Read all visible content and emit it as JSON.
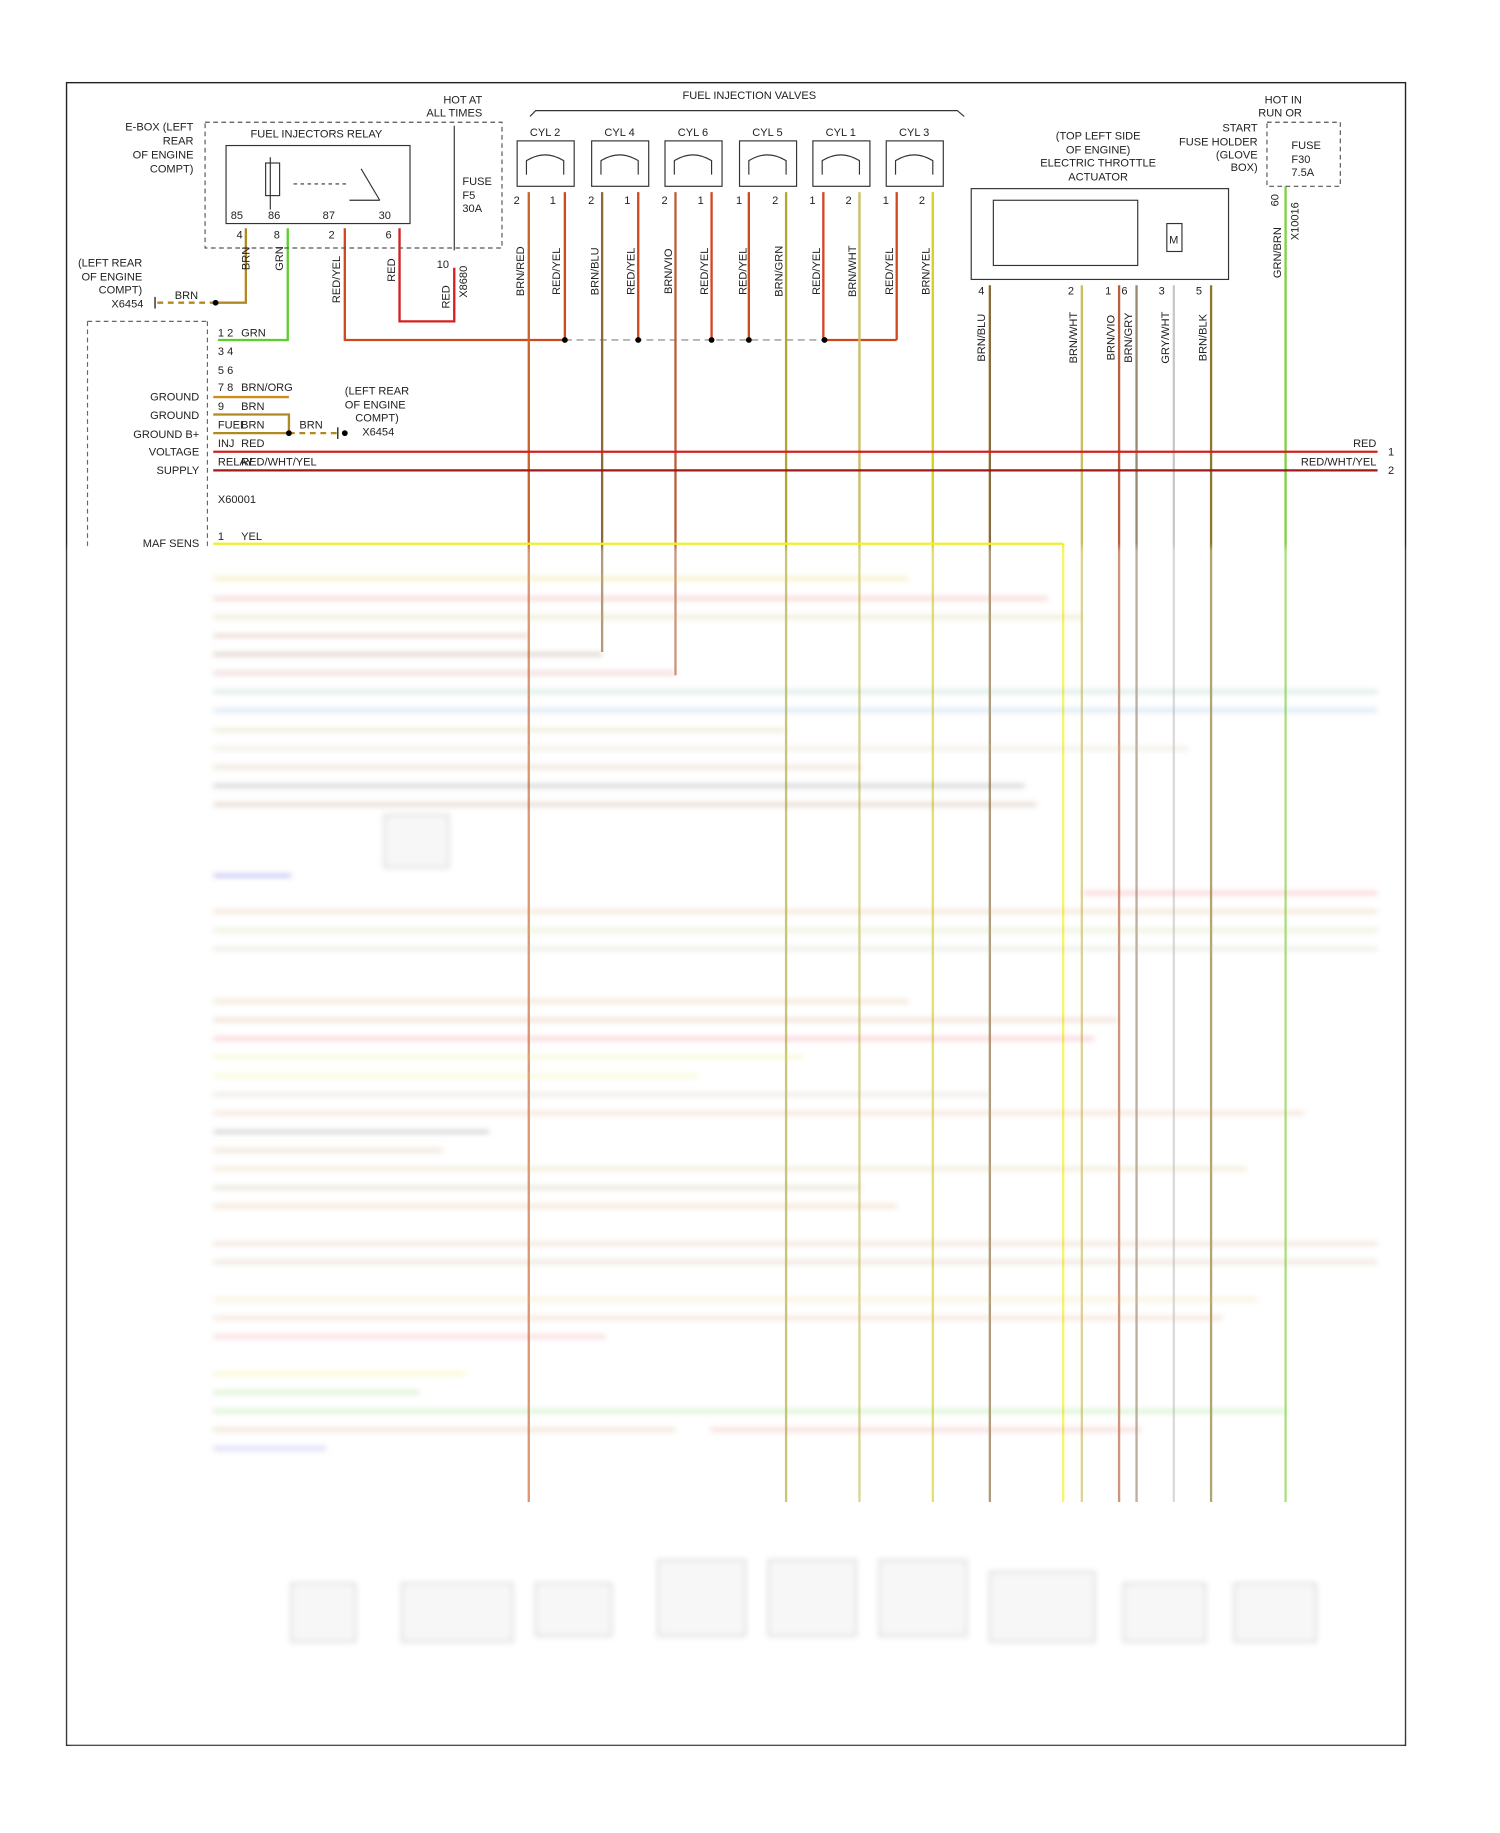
{
  "ebox": {
    "label": [
      "E-BOX (LEFT",
      "REAR",
      "OF ENGINE",
      "COMPT)"
    ]
  },
  "relay": {
    "title": "FUEL INJECTORS RELAY",
    "pins": [
      "85",
      "86",
      "87",
      "30"
    ],
    "wire_pins": [
      "4",
      "8",
      "2",
      "6"
    ],
    "wires": [
      "BRN",
      "GRN",
      "RED/YEL",
      "RED"
    ]
  },
  "hot_at_all_times": [
    "HOT AT",
    "ALL TIMES"
  ],
  "fuse_f5": [
    "FUSE",
    "F5",
    "30A"
  ],
  "x8680": {
    "pin": "10",
    "wire": "RED",
    "connector": "X8680"
  },
  "injectors": {
    "title": "FUEL INJECTION VALVES",
    "cylinders": [
      {
        "name": "CYL 2",
        "pins": [
          "2",
          "1"
        ],
        "wires": [
          "BRN/RED",
          "RED/YEL"
        ]
      },
      {
        "name": "CYL 4",
        "pins": [
          "2",
          "1"
        ],
        "wires": [
          "BRN/BLU",
          "RED/YEL"
        ]
      },
      {
        "name": "CYL 6",
        "pins": [
          "2",
          "1"
        ],
        "wires": [
          "BRN/VIO",
          "RED/YEL"
        ]
      },
      {
        "name": "CYL 5",
        "pins": [
          "1",
          "2"
        ],
        "wires": [
          "RED/YEL",
          "BRN/GRN"
        ]
      },
      {
        "name": "CYL 1",
        "pins": [
          "1",
          "2"
        ],
        "wires": [
          "RED/YEL",
          "BRN/WHT"
        ]
      },
      {
        "name": "CYL 3",
        "pins": [
          "1",
          "2"
        ],
        "wires": [
          "RED/YEL",
          "BRN/YEL"
        ]
      }
    ]
  },
  "throttle": {
    "label": [
      "(TOP LEFT SIDE",
      "OF ENGINE)",
      "ELECTRIC THROTTLE",
      "ACTUATOR"
    ],
    "motor": "M",
    "pins": [
      "4",
      "2",
      "1",
      "6",
      "3",
      "5"
    ],
    "wires": [
      "BRN/BLU",
      "BRN/WHT",
      "BRN/VIO",
      "BRN/GRY",
      "GRY/WHT",
      "BRN/BLK"
    ]
  },
  "fuse_f30": {
    "hot": [
      "HOT IN",
      "RUN OR"
    ],
    "holder": [
      "START",
      "FUSE HOLDER",
      "(GLOVE",
      "BOX)"
    ],
    "fuse": [
      "FUSE",
      "F30",
      "7.5A"
    ],
    "pin": "60",
    "connector": "X10016",
    "wire": "GRN/BRN"
  },
  "ground_a": {
    "location": [
      "(LEFT REAR",
      "OF ENGINE",
      "COMPT)"
    ],
    "connector": "X6454",
    "wire": "BRN"
  },
  "ground_b": {
    "location": [
      "(LEFT REAR",
      "OF ENGINE",
      "COMPT)"
    ],
    "connector": "X6454",
    "wire": "BRN"
  },
  "ecm": {
    "rows": [
      {
        "pin": "1 2",
        "wire": "GRN"
      },
      {
        "pin": "3 4"
      },
      {
        "pin": "5 6"
      },
      {
        "pin": "7 8",
        "wire": "BRN/ORG"
      },
      {
        "pin": "9",
        "wire": "BRN"
      }
    ],
    "left_labels": [
      "GROUND",
      "GROUND",
      "GROUND B+",
      "VOLTAGE",
      "SUPPLY"
    ],
    "relay_label": [
      "FUEL",
      "INJ",
      "RELAY"
    ],
    "relay_wires": [
      "BRN",
      "RED",
      "RED/WHT/YEL"
    ],
    "right": [
      {
        "wire": "RED",
        "pin": "1"
      },
      {
        "wire": "RED/WHT/YEL",
        "pin": "2"
      }
    ],
    "connector": "X60001",
    "maf": {
      "label": "MAF SENS",
      "pin": "1",
      "wire": "YEL"
    }
  }
}
